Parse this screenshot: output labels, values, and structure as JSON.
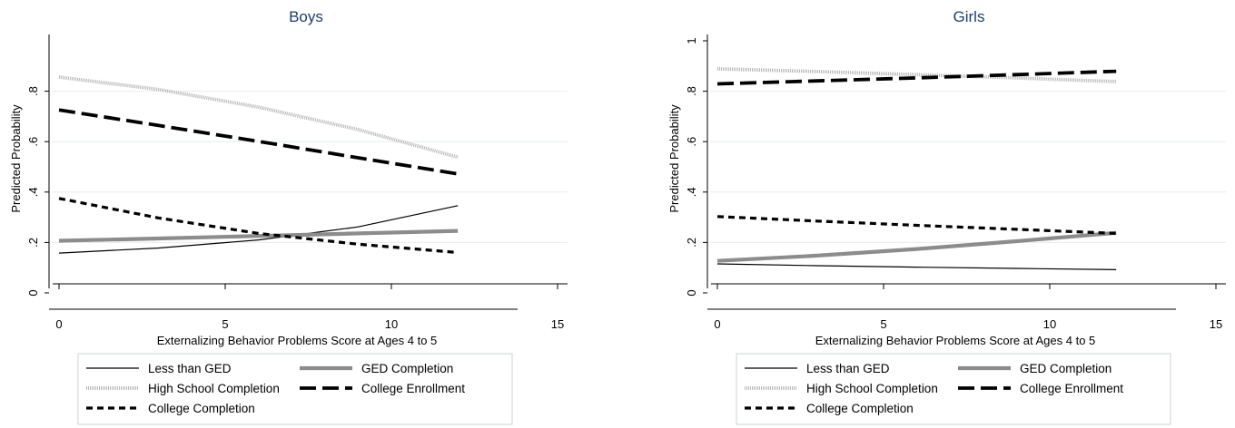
{
  "chart_data": [
    {
      "type": "line",
      "title": "Boys",
      "xlabel": "Externalizing Behavior Problems Score at Ages 4 to 5",
      "ylabel": "Predicted Probability",
      "xlim": [
        0,
        15
      ],
      "ylim": [
        0,
        1
      ],
      "x_ticks": [
        "0",
        "5",
        "10",
        "15"
      ],
      "y_ticks": [
        "0",
        ".2",
        ".4",
        ".6",
        ".8"
      ],
      "grid": true,
      "legend_position": "bottom",
      "series": [
        {
          "name": "Less than GED",
          "style": "thin-solid",
          "color": "#000000",
          "x": [
            0,
            3,
            6,
            9,
            12
          ],
          "y": [
            0.158,
            0.178,
            0.21,
            0.262,
            0.346
          ]
        },
        {
          "name": "GED Completion",
          "style": "thick-solid",
          "color": "#8c8c8c",
          "x": [
            0,
            3,
            6,
            9,
            12
          ],
          "y": [
            0.207,
            0.216,
            0.226,
            0.236,
            0.246
          ]
        },
        {
          "name": "High School Completion",
          "style": "dotted",
          "color": "#b5b5b5",
          "x": [
            0,
            3,
            6,
            9,
            12
          ],
          "y": [
            0.856,
            0.807,
            0.737,
            0.648,
            0.538
          ]
        },
        {
          "name": "College Enrollment",
          "style": "long-dash",
          "color": "#000000",
          "x": [
            0,
            3,
            6,
            9,
            12
          ],
          "y": [
            0.726,
            0.664,
            0.601,
            0.536,
            0.472
          ]
        },
        {
          "name": "College Completion",
          "style": "short-dash",
          "color": "#000000",
          "x": [
            0,
            3,
            6,
            9,
            12
          ],
          "y": [
            0.375,
            0.297,
            0.236,
            0.193,
            0.16
          ]
        }
      ]
    },
    {
      "type": "line",
      "title": "Girls",
      "xlabel": "Externalizing Behavior Problems Score at Ages 4 to 5",
      "ylabel": "Predicted Probability",
      "xlim": [
        0,
        15
      ],
      "ylim": [
        0,
        1
      ],
      "x_ticks": [
        "0",
        "5",
        "10",
        "15"
      ],
      "y_ticks": [
        "0",
        ".2",
        ".4",
        ".6",
        ".8",
        "1"
      ],
      "grid": true,
      "legend_position": "bottom",
      "series": [
        {
          "name": "Less than GED",
          "style": "thin-solid",
          "color": "#000000",
          "x": [
            0,
            3,
            6,
            9,
            12
          ],
          "y": [
            0.115,
            0.108,
            0.102,
            0.097,
            0.092
          ]
        },
        {
          "name": "GED Completion",
          "style": "thick-solid",
          "color": "#8c8c8c",
          "x": [
            0,
            3,
            6,
            9,
            12
          ],
          "y": [
            0.127,
            0.148,
            0.174,
            0.205,
            0.238
          ]
        },
        {
          "name": "High School Completion",
          "style": "dotted",
          "color": "#b5b5b5",
          "x": [
            0,
            3,
            6,
            9,
            12
          ],
          "y": [
            0.889,
            0.878,
            0.866,
            0.853,
            0.838
          ]
        },
        {
          "name": "College Enrollment",
          "style": "long-dash",
          "color": "#000000",
          "x": [
            0,
            3,
            6,
            9,
            12
          ],
          "y": [
            0.829,
            0.841,
            0.853,
            0.866,
            0.879
          ]
        },
        {
          "name": "College Completion",
          "style": "short-dash",
          "color": "#000000",
          "x": [
            0,
            3,
            6,
            9,
            12
          ],
          "y": [
            0.303,
            0.285,
            0.268,
            0.252,
            0.236
          ]
        }
      ]
    }
  ]
}
